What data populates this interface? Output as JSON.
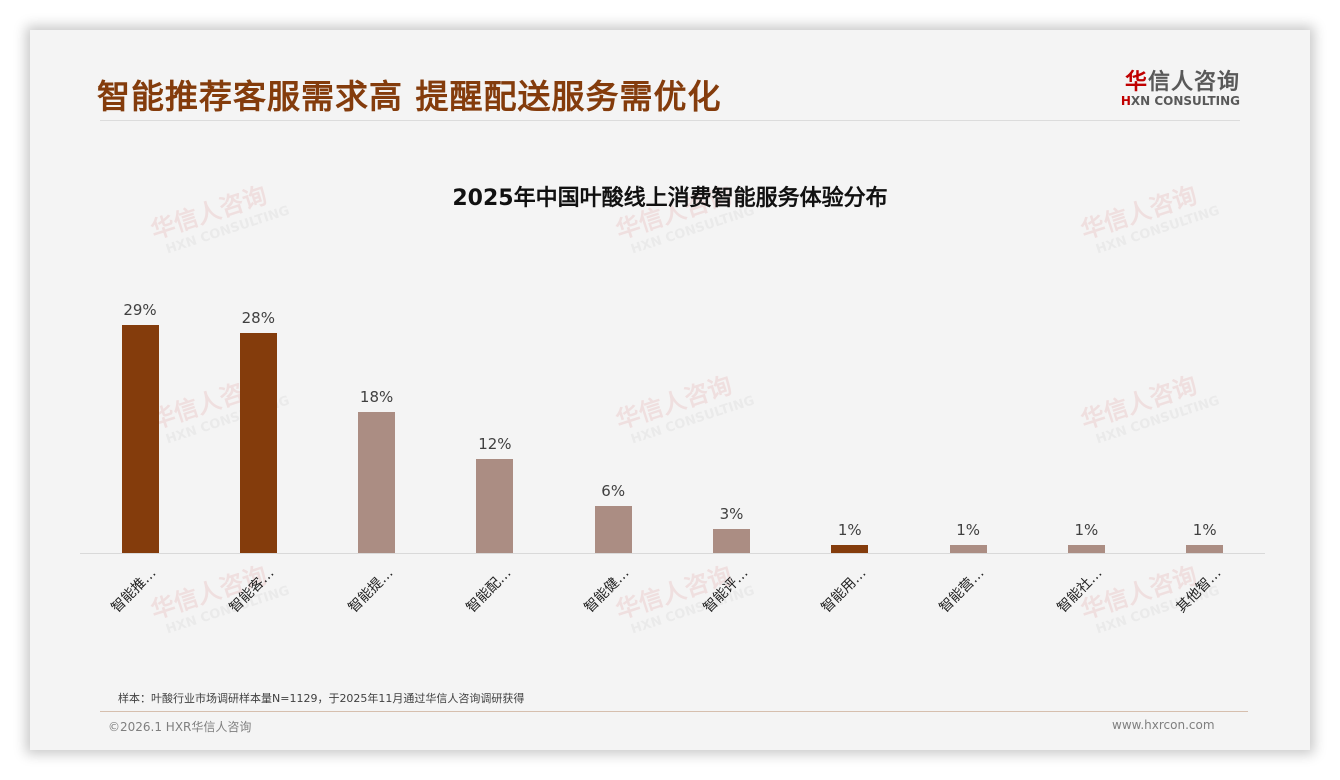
{
  "slide": {
    "title": "智能推荐客服需求高 提醒配送服务需优化",
    "logo": {
      "cn_red": "华",
      "cn_rest": "信人咨询",
      "en_red": "H",
      "en_rest": "XN CONSULTING"
    },
    "watermark": {
      "cn": "华信人咨询",
      "en": "HXN CONSULTING"
    },
    "note": "样本：叶酸行业市场调研样本量N=1129，于2025年11月通过华信人咨询调研获得",
    "copyright": "©2026.1 HXR华信人咨询",
    "website": "www.hxrcon.com"
  },
  "colors": {
    "highlight": "#843c0c",
    "normal": "#ab8d83",
    "title": "#843c0c"
  },
  "chart_data": {
    "type": "bar",
    "title": "2025年中国叶酸线上消费智能服务体验分布",
    "xlabel": "",
    "ylabel": "",
    "ylim": [
      0,
      30
    ],
    "grid": false,
    "legend": null,
    "categories": [
      "智能推…",
      "智能客…",
      "智能提…",
      "智能配…",
      "智能健…",
      "智能评…",
      "智能用…",
      "智能营…",
      "智能社…",
      "其他智…"
    ],
    "values": [
      29,
      28,
      18,
      12,
      6,
      3,
      1,
      1,
      1,
      1
    ],
    "labels": [
      "29%",
      "28%",
      "18%",
      "12%",
      "6%",
      "3%",
      "1%",
      "1%",
      "1%",
      "1%"
    ],
    "highlighted": [
      true,
      true,
      false,
      false,
      false,
      false,
      true,
      false,
      false,
      false
    ]
  }
}
